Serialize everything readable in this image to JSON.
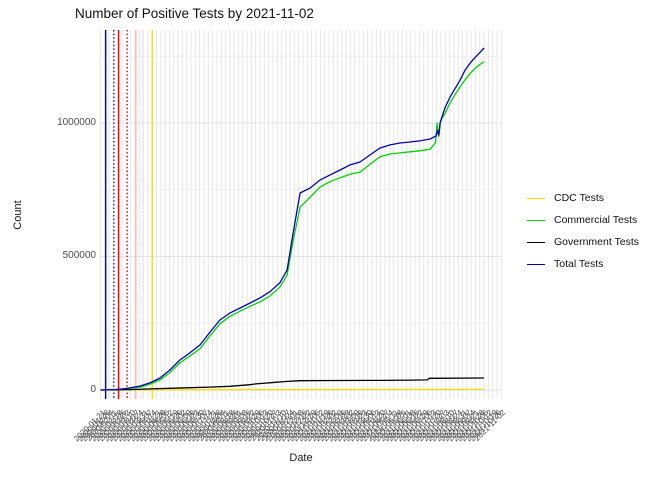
{
  "figure": {
    "title": "Number of Positive Tests by  2021-11-02",
    "x_axis_title": "Date",
    "y_axis_title": "Count"
  },
  "legend": {
    "items": [
      {
        "label": "CDC Tests",
        "color": "#FFD700"
      },
      {
        "label": "Commercial Tests",
        "color": "#00D400"
      },
      {
        "label": "Government Tests",
        "color": "#000000"
      },
      {
        "label": "Total Tests",
        "color": "#0000BB"
      }
    ]
  },
  "chart_data": {
    "type": "line",
    "title": "Number of Positive Tests by  2021-11-02",
    "xlabel": "Date",
    "ylabel": "Count",
    "ylim": [
      0,
      1350000
    ],
    "grid": "light gray gridlines on white panel; dense vertical gridline per date tick",
    "legend_position": "right",
    "y_ticks": [
      {
        "label": "0",
        "value": 0
      },
      {
        "label": "500000",
        "value": 500000
      },
      {
        "label": "1000000",
        "value": 1000000
      }
    ],
    "y_minor_ticks": [
      250000,
      750000,
      1250000
    ],
    "x_tick_labels": [
      "2020-01-21",
      "2020-01-28",
      "2020-02-04",
      "2020-02-11",
      "2020-02-18",
      "2020-02-25",
      "2020-03-03",
      "2020-03-10",
      "2020-03-17",
      "2020-03-24",
      "2020-03-31",
      "2020-04-07",
      "2020-04-14",
      "2020-04-21",
      "2020-04-28",
      "2020-05-05",
      "2020-05-12",
      "2020-05-19",
      "2020-05-26",
      "2020-06-02",
      "2020-06-09",
      "2020-06-16",
      "2020-06-23",
      "2020-06-30",
      "2020-07-07",
      "2020-07-14",
      "2020-07-21",
      "2020-07-28",
      "2020-08-04",
      "2020-08-11",
      "2020-08-18",
      "2020-08-25",
      "2020-09-01",
      "2020-09-08",
      "2020-09-15",
      "2020-09-22",
      "2020-09-29",
      "2020-10-06",
      "2020-10-13",
      "2020-10-20",
      "2020-10-27",
      "2020-11-03",
      "2020-11-10",
      "2020-11-17",
      "2020-11-24",
      "2020-12-01",
      "2020-12-08",
      "2020-12-15",
      "2020-12-22",
      "2020-12-29",
      "2021-01-05",
      "2021-01-12",
      "2021-01-19",
      "2021-01-26",
      "2021-02-02",
      "2021-02-09",
      "2021-02-16",
      "2021-02-23",
      "2021-03-02",
      "2021-03-09",
      "2021-03-16",
      "2021-03-23",
      "2021-03-30",
      "2021-04-06",
      "2021-04-13",
      "2021-04-20",
      "2021-04-27",
      "2021-05-04",
      "2021-05-11",
      "2021-05-18",
      "2021-05-25",
      "2021-06-01",
      "2021-06-08",
      "2021-06-15",
      "2021-06-22",
      "2021-06-29",
      "2021-07-06",
      "2021-07-13",
      "2021-07-20",
      "2021-07-27",
      "2021-08-03",
      "2021-08-10",
      "2021-08-17",
      "2021-08-24",
      "2021-08-31",
      "2021-09-07",
      "2021-09-14",
      "2021-09-21",
      "2021-09-28",
      "2021-10-05",
      "2021-10-12",
      "2021-10-19",
      "2021-10-26",
      "2021-11-02"
    ],
    "vlines": [
      {
        "x": 1.2,
        "color": "#0000CC",
        "style": "solid"
      },
      {
        "x": 3.1,
        "color": "#0000CC",
        "style": "dotted"
      },
      {
        "x": 4.2,
        "color": "#FF0000",
        "style": "solid"
      },
      {
        "x": 6.2,
        "color": "#CC0000",
        "style": "dotted"
      },
      {
        "x": 8.2,
        "color": "#FFB3C0",
        "style": "solid"
      },
      {
        "x": 9.6,
        "color": "#FFCCD5",
        "style": "dotted"
      },
      {
        "x": 12.0,
        "color": "#FFD700",
        "style": "solid"
      }
    ],
    "series": [
      {
        "name": "CDC Tests",
        "color": "#FFD700",
        "points": [
          [
            0,
            0
          ],
          [
            10,
            500
          ],
          [
            30,
            1200
          ],
          [
            60,
            1800
          ],
          [
            89,
            2200
          ]
        ]
      },
      {
        "name": "Commercial Tests",
        "color": "#00D400",
        "points": [
          [
            3.4,
            0
          ],
          [
            5.7,
            3000
          ],
          [
            9.2,
            11000
          ],
          [
            11.5,
            22000
          ],
          [
            13.8,
            38000
          ],
          [
            16.1,
            65000
          ],
          [
            18.4,
            101000
          ],
          [
            20.8,
            128000
          ],
          [
            23.1,
            155000
          ],
          [
            25.4,
            203000
          ],
          [
            27.7,
            248000
          ],
          [
            30,
            276000
          ],
          [
            32.4,
            295000
          ],
          [
            34.7,
            314000
          ],
          [
            37,
            330000
          ],
          [
            39.3,
            352000
          ],
          [
            41.6,
            385000
          ],
          [
            43.3,
            430000
          ],
          [
            44.7,
            560000
          ],
          [
            46.3,
            685000
          ],
          [
            48.6,
            722000
          ],
          [
            50.9,
            760000
          ],
          [
            53.2,
            780000
          ],
          [
            55.6,
            795000
          ],
          [
            57.9,
            808000
          ],
          [
            60.2,
            816000
          ],
          [
            62.5,
            845000
          ],
          [
            64.8,
            873000
          ],
          [
            67.2,
            884000
          ],
          [
            69.5,
            888000
          ],
          [
            71.8,
            892000
          ],
          [
            74.1,
            896000
          ],
          [
            76.5,
            902000
          ],
          [
            77.7,
            925000
          ],
          [
            78.1,
            1000000
          ],
          [
            78.5,
            950000
          ],
          [
            78.9,
            1010000
          ],
          [
            79.9,
            1035000
          ],
          [
            81.1,
            1075000
          ],
          [
            82.3,
            1108000
          ],
          [
            83.4,
            1135000
          ],
          [
            84.6,
            1162000
          ],
          [
            85.8,
            1186000
          ],
          [
            86.9,
            1205000
          ],
          [
            88.1,
            1220000
          ],
          [
            89,
            1230000
          ]
        ]
      },
      {
        "name": "Government Tests",
        "color": "#000000",
        "points": [
          [
            0,
            0
          ],
          [
            7,
            1500
          ],
          [
            11.5,
            4000
          ],
          [
            16,
            6500
          ],
          [
            20.8,
            8500
          ],
          [
            25.4,
            11000
          ],
          [
            30,
            14000
          ],
          [
            34.7,
            20000
          ],
          [
            36,
            23000
          ],
          [
            38.3,
            26000
          ],
          [
            40.6,
            29000
          ],
          [
            43,
            32000
          ],
          [
            46.3,
            35000
          ],
          [
            55,
            35500
          ],
          [
            65,
            36000
          ],
          [
            72,
            37000
          ],
          [
            75.8,
            38000
          ],
          [
            76.3,
            44000
          ],
          [
            89,
            45000
          ]
        ]
      },
      {
        "name": "Total Tests",
        "color": "#0000BB",
        "points": [
          [
            0,
            0
          ],
          [
            3.4,
            1000
          ],
          [
            5.7,
            5000
          ],
          [
            9.2,
            15000
          ],
          [
            11.5,
            27000
          ],
          [
            13.8,
            45000
          ],
          [
            16.1,
            75000
          ],
          [
            18.4,
            112000
          ],
          [
            20.8,
            140000
          ],
          [
            23.1,
            169000
          ],
          [
            25.4,
            217000
          ],
          [
            27.7,
            262000
          ],
          [
            30,
            288000
          ],
          [
            32.4,
            307000
          ],
          [
            34.7,
            326000
          ],
          [
            37,
            345000
          ],
          [
            39.3,
            368000
          ],
          [
            41.6,
            401000
          ],
          [
            43.3,
            449000
          ],
          [
            44.7,
            590000
          ],
          [
            46.3,
            738000
          ],
          [
            48.6,
            756000
          ],
          [
            50.9,
            786000
          ],
          [
            53.2,
            805000
          ],
          [
            55.6,
            824000
          ],
          [
            57.9,
            843000
          ],
          [
            60.2,
            854000
          ],
          [
            62.5,
            880000
          ],
          [
            64.8,
            906000
          ],
          [
            67.2,
            918000
          ],
          [
            69.5,
            925000
          ],
          [
            71.8,
            929000
          ],
          [
            74.1,
            933000
          ],
          [
            76.5,
            940000
          ],
          [
            77.9,
            952000
          ],
          [
            78.2,
            972000
          ],
          [
            78.5,
            955000
          ],
          [
            78.8,
            1000000
          ],
          [
            79.9,
            1056000
          ],
          [
            81.1,
            1097000
          ],
          [
            82.3,
            1130000
          ],
          [
            83.4,
            1160000
          ],
          [
            84.6,
            1198000
          ],
          [
            85.8,
            1225000
          ],
          [
            86.9,
            1245000
          ],
          [
            88.1,
            1265000
          ],
          [
            89,
            1281000
          ]
        ]
      }
    ]
  }
}
